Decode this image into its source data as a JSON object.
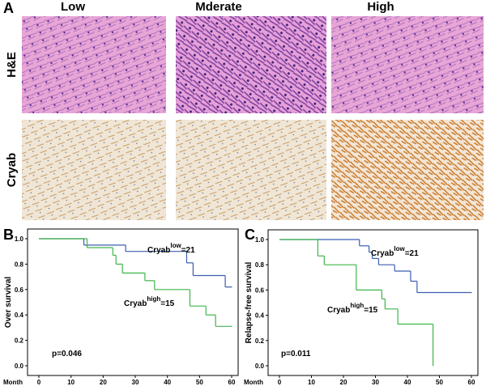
{
  "panel_a": {
    "label": "A",
    "columns": [
      "Low",
      "Mderate",
      "High"
    ],
    "rows": [
      "H&E",
      "Cryab"
    ]
  },
  "chart_data": [
    {
      "type": "step",
      "panel": "B",
      "ylabel": "Over survival",
      "xlabel": "Month",
      "xlim": [
        0,
        60
      ],
      "ylim": [
        0,
        1
      ],
      "xticks": [
        0,
        10,
        20,
        30,
        40,
        50,
        60
      ],
      "yticks": [
        {
          "value": 0,
          "label": "0.0"
        },
        0.2,
        0.4,
        0.6,
        0.8,
        {
          "value": 1,
          "label": "1.0"
        }
      ],
      "series": [
        {
          "color": "#3b5eb0",
          "x": [
            0,
            14,
            27,
            46,
            48,
            58,
            60
          ],
          "values": [
            1,
            0.95,
            0.9,
            0.81,
            0.71,
            0.62,
            0.62
          ],
          "label": {
            "text": "Cryab",
            "sup": "low",
            "suffix": "=21"
          }
        },
        {
          "color": "#3fb54a",
          "x": [
            0,
            15,
            23,
            24,
            26,
            33,
            36,
            47,
            52,
            55,
            60
          ],
          "values": [
            1,
            0.93,
            0.87,
            0.8,
            0.73,
            0.67,
            0.6,
            0.47,
            0.4,
            0.31,
            0.31
          ],
          "label": {
            "text": "Cryab",
            "sup": "high",
            "suffix": "=15"
          }
        }
      ],
      "annotation": "p=0.046"
    },
    {
      "type": "step",
      "panel": "C",
      "ylabel": "Relapse-free survival",
      "xlabel": "Month",
      "xlim": [
        0,
        60
      ],
      "ylim": [
        0,
        1
      ],
      "xticks": [
        0,
        10,
        20,
        30,
        40,
        50,
        60
      ],
      "yticks": [
        {
          "value": 0,
          "label": "0.0"
        },
        0.2,
        0.4,
        0.6,
        0.8,
        {
          "value": 1,
          "label": "1.0"
        }
      ],
      "series": [
        {
          "color": "#3b5eb0",
          "x": [
            0,
            25,
            28,
            29,
            31,
            36,
            41,
            43,
            60
          ],
          "values": [
            1,
            0.95,
            0.9,
            0.85,
            0.8,
            0.75,
            0.67,
            0.58,
            0.58
          ],
          "label": {
            "text": "Cryab",
            "sup": "low",
            "suffix": "=21"
          }
        },
        {
          "color": "#3fb54a",
          "x": [
            0,
            12,
            14,
            24,
            32,
            33,
            37,
            48
          ],
          "values": [
            1,
            0.87,
            0.8,
            0.6,
            0.53,
            0.45,
            0.33,
            0
          ],
          "label": {
            "text": "Cryab",
            "sup": "high",
            "suffix": "=15"
          }
        }
      ],
      "annotation": "p=0.011"
    }
  ]
}
